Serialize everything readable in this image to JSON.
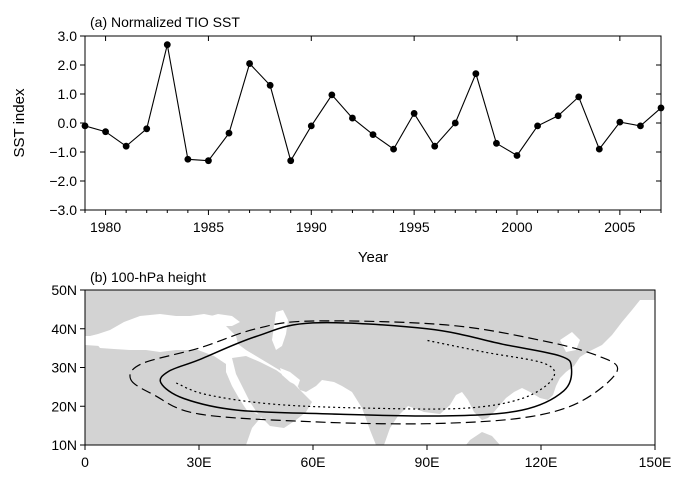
{
  "chart_data": [
    {
      "type": "line",
      "title": "(a)  Normalized TIO SST",
      "xlabel": "Year",
      "ylabel": "SST index",
      "xlim": [
        1979,
        2007
      ],
      "ylim": [
        -3.0,
        3.0
      ],
      "x_ticks": [
        1980,
        1985,
        1990,
        1995,
        2000,
        2005
      ],
      "x_tick_labels": [
        "1980",
        "1985",
        "1990",
        "1995",
        "2000",
        "2005"
      ],
      "y_ticks": [
        3.0,
        2.0,
        1.0,
        0.0,
        -1.0,
        -2.0,
        -3.0
      ],
      "y_tick_labels": [
        "3.0",
        "2.0",
        "1.0",
        "0.0",
        "−1.0",
        "−2.0",
        "−3.0"
      ],
      "grid": false,
      "series": [
        {
          "x": [
            1979,
            1980,
            1981,
            1982,
            1983,
            1984,
            1985,
            1986,
            1987,
            1988,
            1989,
            1990,
            1991,
            1992,
            1993,
            1994,
            1995,
            1996,
            1997,
            1998,
            1999,
            2000,
            2001,
            2002,
            2003,
            2004,
            2005,
            2006,
            2007
          ],
          "values": [
            -0.1,
            -0.3,
            -0.8,
            -0.2,
            2.7,
            -1.25,
            -1.3,
            -0.35,
            2.05,
            1.3,
            -1.3,
            -0.1,
            0.97,
            0.17,
            -0.4,
            -0.9,
            0.33,
            -0.8,
            0.0,
            1.7,
            -0.7,
            -1.12,
            -0.1,
            0.25,
            0.9,
            -0.9,
            0.03,
            -0.1,
            0.52
          ],
          "color": "#000000",
          "marker": "circle"
        }
      ]
    },
    {
      "type": "map",
      "title": "(b)  100-hPa height",
      "xlim": [
        0,
        150
      ],
      "ylim": [
        10,
        50
      ],
      "x_ticks": [
        0,
        30,
        60,
        90,
        120,
        150
      ],
      "x_tick_labels": [
        "0",
        "30E",
        "60E",
        "90E",
        "120E",
        "150E"
      ],
      "y_ticks": [
        50,
        40,
        30,
        20,
        10
      ],
      "y_tick_labels": [
        "50N",
        "40N",
        "30N",
        "20N",
        "10N"
      ],
      "land_color": "#d3d3d3",
      "ocean_color": "#ffffff",
      "contours": [
        {
          "style": "dashed",
          "points": [
            [
              12,
              27
            ],
            [
              18,
              23
            ],
            [
              30,
              18
            ],
            [
              60,
              16
            ],
            [
              90,
              15.5
            ],
            [
              115,
              17
            ],
            [
              130,
              21
            ],
            [
              140,
              29
            ],
            [
              135,
              33
            ],
            [
              120,
              37
            ],
            [
              95,
              41
            ],
            [
              60,
              42
            ],
            [
              45,
              40
            ],
            [
              30,
              35
            ],
            [
              15,
              31
            ]
          ]
        },
        {
          "style": "solid",
          "points": [
            [
              20,
              26
            ],
            [
              26,
              22
            ],
            [
              40,
              19
            ],
            [
              65,
              18
            ],
            [
              95,
              17.5
            ],
            [
              115,
              19
            ],
            [
              126,
              24
            ],
            [
              128,
              30
            ],
            [
              125,
              33
            ],
            [
              110,
              36
            ],
            [
              90,
              40
            ],
            [
              60,
              41.5
            ],
            [
              45,
              38
            ],
            [
              30,
              32
            ],
            [
              22,
              29
            ]
          ]
        },
        {
          "style": "dotted",
          "points": [
            [
              24,
              26
            ],
            [
              32,
              23
            ],
            [
              50,
              20.5
            ],
            [
              75,
              19.5
            ],
            [
              100,
              19.5
            ],
            [
              115,
              22
            ],
            [
              123,
              27
            ],
            [
              121,
              31
            ],
            [
              105,
              34
            ],
            [
              90,
              37
            ]
          ]
        }
      ]
    }
  ]
}
